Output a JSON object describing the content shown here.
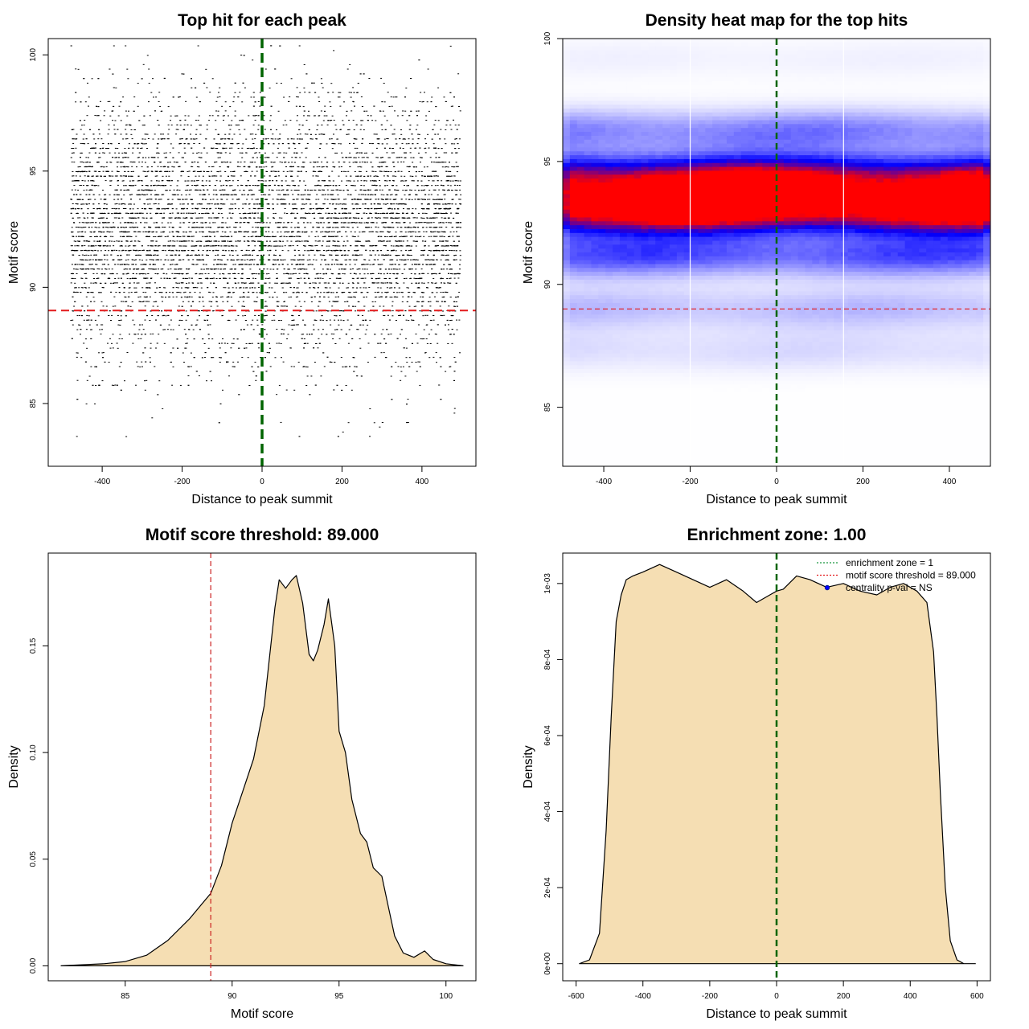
{
  "chart_data": [
    {
      "id": "scatter",
      "type": "scatter",
      "title": "Top hit for each peak",
      "xlabel": "Distance to peak summit",
      "ylabel": "Motif score",
      "xlim": [
        -535,
        535
      ],
      "ylim": [
        82.3,
        100.7
      ],
      "xticks": [
        -400,
        -200,
        0,
        200,
        400
      ],
      "yticks": [
        85,
        90,
        95,
        100
      ],
      "x_range": [
        -480,
        495
      ],
      "score_mass": [
        [
          84.0,
          1
        ],
        [
          85.0,
          2
        ],
        [
          86.0,
          6
        ],
        [
          87.0,
          12
        ],
        [
          88.0,
          22
        ],
        [
          89.0,
          38
        ],
        [
          90.0,
          60
        ],
        [
          91.0,
          85
        ],
        [
          92.0,
          100
        ],
        [
          93.0,
          98
        ],
        [
          94.0,
          92
        ],
        [
          95.0,
          70
        ],
        [
          96.0,
          45
        ],
        [
          97.0,
          28
        ],
        [
          98.0,
          14
        ],
        [
          99.0,
          6
        ],
        [
          100.0,
          2
        ]
      ],
      "vline": 0,
      "vline_color": "#006400",
      "hline": 89,
      "hline_color": "#e31a1c",
      "point_count": 9000
    },
    {
      "id": "heatmap",
      "type": "heatmap",
      "title": "Density heat map for the top hits",
      "xlabel": "Distance to peak summit",
      "ylabel": "Motif score",
      "xlim": [
        -495,
        495
      ],
      "ylim": [
        82.6,
        100.0
      ],
      "xticks": [
        -400,
        -200,
        0,
        200,
        400
      ],
      "yticks": [
        85,
        90,
        95,
        100
      ],
      "x_range": [
        -495,
        495
      ],
      "bands": [
        {
          "center": 94.4,
          "weight": 0.85
        },
        {
          "center": 92.9,
          "weight": 1.0
        },
        {
          "center": 93.6,
          "weight": 0.7
        },
        {
          "center": 91.2,
          "weight": 0.4
        },
        {
          "center": 96.2,
          "weight": 0.3
        },
        {
          "center": 89.0,
          "weight": 0.15
        },
        {
          "center": 87.3,
          "weight": 0.08
        },
        {
          "center": 99.2,
          "weight": 0.03
        }
      ],
      "white_lines_x": [
        -200,
        155
      ],
      "vline": 0,
      "vline_color": "#006400",
      "hline": 89,
      "hline_color": "#e31a1c",
      "palette": [
        "#ffffff",
        "#0000ff",
        "#ff0000"
      ]
    },
    {
      "id": "score_density",
      "type": "area",
      "title": "Motif score threshold: 89.000",
      "xlabel": "Motif score",
      "ylabel": "Density",
      "xlim": [
        81.4,
        101.4
      ],
      "ylim": [
        -0.007,
        0.1935
      ],
      "xticks": [
        85,
        90,
        95,
        100
      ],
      "yticks": [
        0.0,
        0.05,
        0.1,
        0.15
      ],
      "ytick_labels": [
        "0.00",
        "0.05",
        "0.10",
        "0.15"
      ],
      "x": [
        82.0,
        84.0,
        85.0,
        86.0,
        87.0,
        88.0,
        89.0,
        89.5,
        90.0,
        90.5,
        91.0,
        91.5,
        92.0,
        92.2,
        92.5,
        92.8,
        93.0,
        93.3,
        93.6,
        93.8,
        94.0,
        94.3,
        94.5,
        94.8,
        95.0,
        95.3,
        95.6,
        96.0,
        96.3,
        96.6,
        97.0,
        97.3,
        97.6,
        98.0,
        98.5,
        99.0,
        99.4,
        100.0,
        100.8
      ],
      "y": [
        0.0,
        0.001,
        0.002,
        0.005,
        0.012,
        0.022,
        0.034,
        0.047,
        0.067,
        0.082,
        0.097,
        0.122,
        0.168,
        0.181,
        0.177,
        0.181,
        0.183,
        0.17,
        0.146,
        0.143,
        0.148,
        0.16,
        0.172,
        0.15,
        0.11,
        0.1,
        0.078,
        0.062,
        0.058,
        0.046,
        0.042,
        0.028,
        0.014,
        0.006,
        0.004,
        0.007,
        0.003,
        0.001,
        0.0
      ],
      "fill_color": "#f5deb3",
      "vline": 89,
      "vline_color": "#cc2222"
    },
    {
      "id": "distance_density",
      "type": "area",
      "title": "Enrichment zone: 1.00",
      "xlabel": "Distance to peak summit",
      "ylabel": "Density",
      "xlim": [
        -640,
        640
      ],
      "ylim": [
        -4.5e-05,
        0.00108
      ],
      "xticks": [
        -600,
        -400,
        -200,
        0,
        200,
        400,
        600
      ],
      "yticks": [
        0.0,
        0.0002,
        0.0004,
        0.0006,
        0.0008,
        0.001
      ],
      "ytick_labels": [
        "0e+00",
        "2e-04",
        "4e-04",
        "6e-04",
        "8e-04",
        "1e-03"
      ],
      "x": [
        -590,
        -560,
        -530,
        -510,
        -495,
        -480,
        -465,
        -450,
        -430,
        -400,
        -350,
        -300,
        -250,
        -200,
        -150,
        -100,
        -60,
        -20,
        0,
        20,
        60,
        100,
        150,
        200,
        250,
        300,
        340,
        380,
        420,
        450,
        470,
        480,
        490,
        505,
        520,
        540,
        560,
        595
      ],
      "y": [
        0.0,
        1e-05,
        8e-05,
        0.00035,
        0.00065,
        0.0009,
        0.00097,
        0.00101,
        0.00102,
        0.00103,
        0.00105,
        0.00103,
        0.00101,
        0.00099,
        0.00101,
        0.00098,
        0.00095,
        0.00097,
        0.00098,
        0.000985,
        0.00102,
        0.00101,
        0.00099,
        0.001,
        0.00098,
        0.00097,
        0.00099,
        0.001,
        0.00098,
        0.00095,
        0.00082,
        0.00065,
        0.00045,
        0.0002,
        6e-05,
        1e-05,
        0.0,
        0.0
      ],
      "fill_color": "#f5deb3",
      "vline": 0,
      "vline_color": "#006400",
      "legend": {
        "position": "top-right",
        "entries": [
          {
            "label": "enrichment zone = 1",
            "style": "dotted-line",
            "color": "#1a9641"
          },
          {
            "label": "motif score threshold = 89.000",
            "style": "dotted-line",
            "color": "#e31a1c"
          },
          {
            "label": "centrality p-val = NS",
            "style": "point",
            "color": "#0000ff"
          }
        ]
      }
    }
  ]
}
